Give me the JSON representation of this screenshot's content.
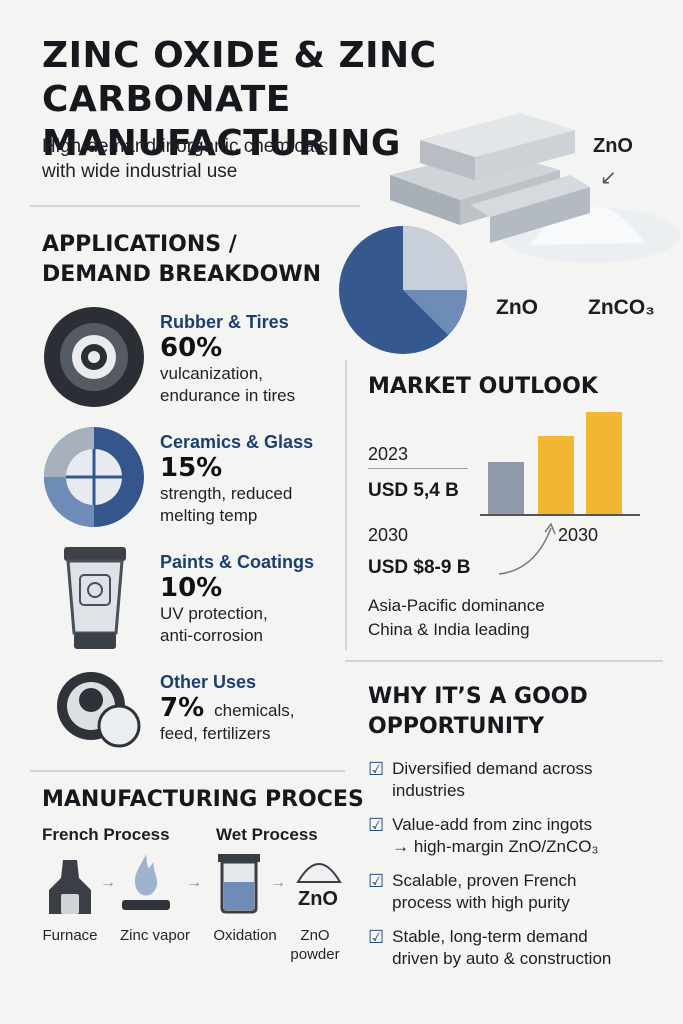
{
  "header": {
    "title_line1": "ZINC OXIDE & ZINC CARBONATE",
    "title_line2": "MANUFACTURING",
    "subtitle_line1": "High-demand inorganic chemicals",
    "subtitle_line2": "with wide industrial use"
  },
  "hero": {
    "label_zno_top": "ZnO",
    "label_zno": "ZnO",
    "label_znco3": "ZnCO₃"
  },
  "applications": {
    "title_line1": "APPLICATIONS /",
    "title_line2": "DEMAND BREAKDOWN",
    "items": [
      {
        "name": "Rubber & Tires",
        "percent": "60%",
        "desc1": "vulcanization,",
        "desc2": "endurance in tires",
        "icon": "tire-icon"
      },
      {
        "name": "Ceramics & Glass",
        "percent": "15%",
        "desc1": "strength, reduced",
        "desc2": "melting temp",
        "icon": "ceramic-disc-icon"
      },
      {
        "name": "Paints & Coatings",
        "percent": "10%",
        "desc1": "UV protection,",
        "desc2": "anti-corrosion",
        "icon": "paint-tube-icon"
      },
      {
        "name": "Other Uses",
        "percent": "7%",
        "desc1": "chemicals,",
        "desc2": "feed, fertilizers",
        "icon": "feed-bowl-icon"
      }
    ]
  },
  "market": {
    "title": "MARKET OUTLOOK",
    "year_2023": "2023",
    "value_2023": "USD 5,4 B",
    "year_2030_left": "2030",
    "year_2030_right": "2030",
    "value_2030": "USD $8-9 B",
    "note_line1": "Asia-Pacific dominance",
    "note_line2": "China & India leading",
    "colors": {
      "bar_gray": "#8e9aaa",
      "bar_gold": "#f2b632"
    }
  },
  "why": {
    "title_line1": "WHY IT’S A GOOD",
    "title_line2": "OPPORTUNITY",
    "items": [
      {
        "line1": "Diversified demand across",
        "line2": "industries"
      },
      {
        "line1": "Value-add from zinc ingots",
        "line2": "→ high-margin ZnO/ZnCO₃"
      },
      {
        "line1": "Scalable, proven French",
        "line2": "process with high purity"
      },
      {
        "line1": "Stable, long-term demand",
        "line2": "driven by auto & construction"
      }
    ]
  },
  "process": {
    "title": "MANUFACTURING PROCES",
    "french": "French Process",
    "wet": "Wet Process",
    "zno_label": "ZnO",
    "steps": [
      {
        "caption1": "Furnace",
        "caption2": "",
        "icon": "furnace-icon"
      },
      {
        "caption1": "Zinc vapor",
        "caption2": "",
        "icon": "flame-icon"
      },
      {
        "caption1": "Oxidation",
        "caption2": "",
        "icon": "beaker-icon"
      },
      {
        "caption1": "ZnO",
        "caption2": "powder",
        "icon": "powder-pile-icon"
      }
    ]
  },
  "palette": {
    "navy": "#2f4f82",
    "steel": "#6e8bb7",
    "light": "#c9d3e1"
  }
}
